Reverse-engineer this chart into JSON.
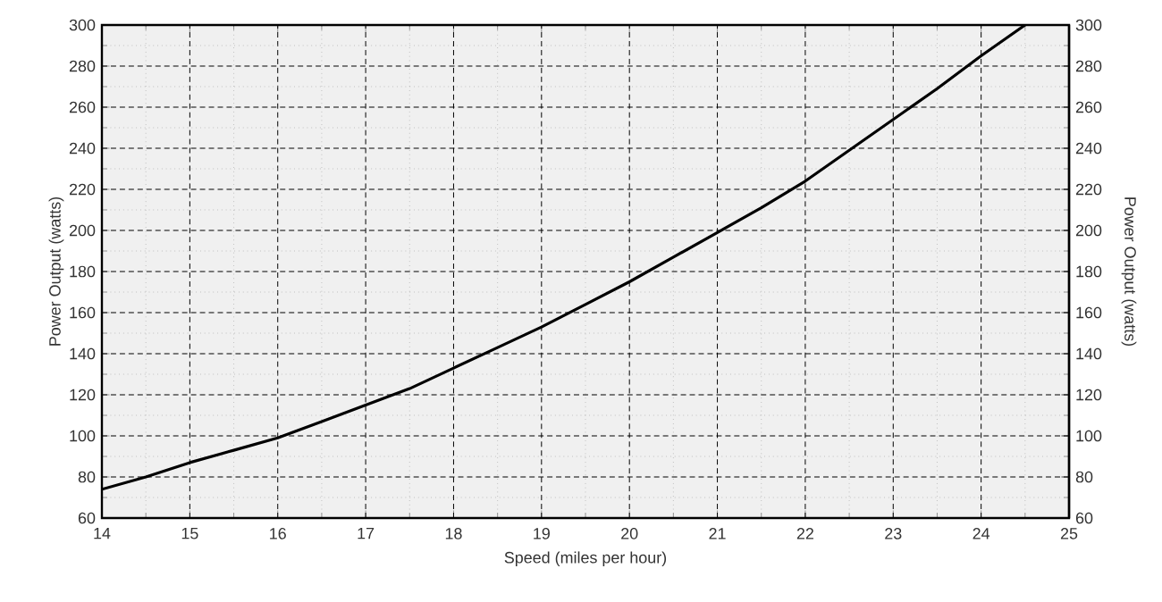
{
  "chart_data": {
    "type": "line",
    "xlabel": "Speed (miles per hour)",
    "ylabel": "Power Output (watts)",
    "y2label": "Power Output (watts)",
    "x": [
      14,
      14.5,
      15,
      15.5,
      16,
      16.5,
      17,
      17.5,
      18,
      18.5,
      19,
      19.5,
      20,
      20.5,
      21,
      21.5,
      22,
      22.5,
      23,
      23.5,
      24,
      24.5
    ],
    "series": [
      {
        "color": "#000000",
        "values": [
          74,
          80,
          87,
          93,
          99,
          107,
          115,
          123,
          133,
          143,
          153,
          164,
          175,
          187,
          199,
          211,
          224,
          239,
          254,
          269,
          285,
          300
        ]
      }
    ],
    "xlim": [
      14,
      25
    ],
    "xticks": [
      14,
      15,
      16,
      17,
      18,
      19,
      20,
      21,
      22,
      23,
      24,
      25
    ],
    "ylim": [
      60,
      300
    ],
    "yticks": [
      60,
      80,
      100,
      120,
      140,
      160,
      180,
      200,
      220,
      240,
      260,
      280,
      300
    ],
    "y2lim": [
      60,
      300
    ],
    "y2ticks": [
      60,
      80,
      100,
      120,
      140,
      160,
      180,
      200,
      220,
      240,
      260,
      280,
      300
    ],
    "grid": true,
    "marker": "none",
    "line_style": "solid"
  }
}
